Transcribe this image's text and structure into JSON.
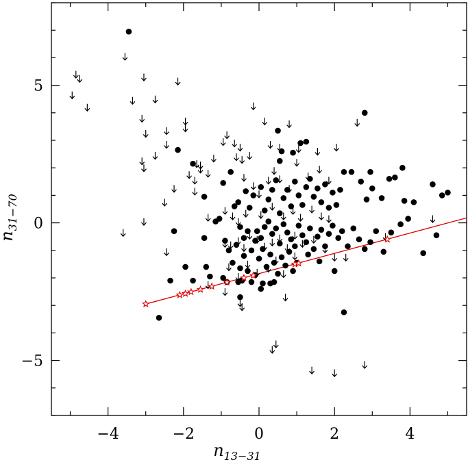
{
  "chart_data": {
    "type": "scatter",
    "title": "",
    "xlabel": {
      "main": "n",
      "sub": "13−31"
    },
    "ylabel": {
      "main": "n",
      "sub": "31−70"
    },
    "xlim": [
      -5.5,
      5.5
    ],
    "ylim": [
      -7,
      8
    ],
    "x_ticks_major": [
      -4,
      -2,
      0,
      2,
      4
    ],
    "x_tick_labels": [
      "−4",
      "−2",
      "0",
      "2",
      "4"
    ],
    "y_ticks_major": [
      -5,
      0,
      5
    ],
    "y_tick_labels": [
      "−5",
      "0",
      "5"
    ],
    "grid": false,
    "colors": {
      "points": "#000000",
      "fit": "#e00000"
    },
    "series": [
      {
        "kind": "detections",
        "marker": "filled-circle",
        "points": [
          [
            -3.45,
            6.95
          ],
          [
            2.8,
            4.0
          ],
          [
            0.5,
            3.35
          ],
          [
            1.25,
            2.95
          ],
          [
            1.1,
            2.9
          ],
          [
            0.6,
            2.6
          ],
          [
            0.9,
            2.55
          ],
          [
            0.55,
            2.25
          ],
          [
            -2.15,
            2.65
          ],
          [
            -1.75,
            2.15
          ],
          [
            -0.75,
            1.85
          ],
          [
            -0.95,
            1.45
          ],
          [
            -1.45,
            0.95
          ],
          [
            -1.05,
            0.15
          ],
          [
            -1.15,
            0.05
          ],
          [
            -0.65,
            0.6
          ],
          [
            -0.55,
            0.75
          ],
          [
            -0.35,
            1.15
          ],
          [
            -0.25,
            0.55
          ],
          [
            -0.15,
            1.0
          ],
          [
            0.05,
            1.3
          ],
          [
            0.15,
            0.45
          ],
          [
            0.25,
            0.85
          ],
          [
            0.35,
            1.2
          ],
          [
            0.45,
            1.55
          ],
          [
            0.55,
            0.35
          ],
          [
            0.65,
            0.9
          ],
          [
            0.75,
            1.2
          ],
          [
            0.85,
            0.6
          ],
          [
            0.95,
            1.5
          ],
          [
            1.05,
            1.0
          ],
          [
            1.15,
            0.65
          ],
          [
            1.25,
            1.3
          ],
          [
            1.35,
            1.6
          ],
          [
            1.45,
            0.95
          ],
          [
            1.55,
            1.25
          ],
          [
            1.65,
            0.75
          ],
          [
            1.75,
            1.4
          ],
          [
            1.85,
            0.55
          ],
          [
            1.95,
            1.1
          ],
          [
            2.05,
            0.65
          ],
          [
            2.15,
            1.2
          ],
          [
            2.25,
            1.85
          ],
          [
            2.45,
            1.85
          ],
          [
            2.7,
            1.5
          ],
          [
            2.85,
            0.85
          ],
          [
            2.95,
            1.85
          ],
          [
            3.0,
            1.25
          ],
          [
            3.25,
            0.9
          ],
          [
            3.45,
            1.6
          ],
          [
            3.6,
            1.65
          ],
          [
            3.8,
            2.0
          ],
          [
            3.85,
            0.8
          ],
          [
            3.95,
            0.15
          ],
          [
            4.1,
            0.75
          ],
          [
            4.6,
            1.4
          ],
          [
            4.85,
            1.0
          ],
          [
            5.0,
            1.1
          ],
          [
            -0.05,
            -0.3
          ],
          [
            0.05,
            -0.55
          ],
          [
            0.15,
            -0.15
          ],
          [
            0.25,
            0.05
          ],
          [
            0.35,
            -0.4
          ],
          [
            0.45,
            -0.2
          ],
          [
            0.55,
            -0.75
          ],
          [
            0.65,
            -0.05
          ],
          [
            0.75,
            -0.35
          ],
          [
            0.85,
            -0.6
          ],
          [
            0.95,
            -0.85
          ],
          [
            1.05,
            -0.1
          ],
          [
            1.15,
            -0.45
          ],
          [
            1.25,
            -0.7
          ],
          [
            1.35,
            -0.2
          ],
          [
            1.45,
            -0.95
          ],
          [
            1.55,
            -0.5
          ],
          [
            1.65,
            -0.25
          ],
          [
            1.75,
            -0.85
          ],
          [
            1.85,
            -0.4
          ],
          [
            1.95,
            -0.1
          ],
          [
            2.1,
            -0.55
          ],
          [
            2.2,
            -0.3
          ],
          [
            2.35,
            -0.85
          ],
          [
            2.5,
            -0.2
          ],
          [
            2.65,
            -0.6
          ],
          [
            2.8,
            -0.95
          ],
          [
            2.95,
            -0.7
          ],
          [
            3.1,
            -0.3
          ],
          [
            3.3,
            -1.05
          ],
          [
            3.5,
            -0.35
          ],
          [
            3.75,
            -0.05
          ],
          [
            -0.5,
            -0.15
          ],
          [
            -0.4,
            -0.55
          ],
          [
            -0.3,
            -0.3
          ],
          [
            -0.2,
            -1.0
          ],
          [
            -0.1,
            -0.65
          ],
          [
            0.0,
            -1.3
          ],
          [
            0.1,
            -0.95
          ],
          [
            0.2,
            -1.6
          ],
          [
            0.3,
            -1.15
          ],
          [
            0.4,
            -1.45
          ],
          [
            0.5,
            -1.85
          ],
          [
            0.6,
            -1.25
          ],
          [
            0.7,
            -1.55
          ],
          [
            0.8,
            -1.05
          ],
          [
            0.9,
            -1.75
          ],
          [
            1.0,
            -1.45
          ],
          [
            -0.9,
            -0.65
          ],
          [
            -0.8,
            -1.0
          ],
          [
            -0.7,
            -1.45
          ],
          [
            -0.6,
            -0.8
          ],
          [
            -0.5,
            -1.65
          ],
          [
            -0.4,
            -1.2
          ],
          [
            -0.3,
            -1.75
          ],
          [
            -0.2,
            -2.15
          ],
          [
            -0.1,
            -1.9
          ],
          [
            0.1,
            -2.2
          ],
          [
            0.3,
            -2.2
          ],
          [
            0.4,
            -2.15
          ],
          [
            -0.45,
            -2.1
          ],
          [
            -0.55,
            -2.15
          ],
          [
            -0.5,
            -2.7
          ],
          [
            -0.85,
            -2.15
          ],
          [
            -0.95,
            -2.0
          ],
          [
            -1.3,
            -1.95
          ],
          [
            -1.4,
            -1.6
          ],
          [
            -1.75,
            -2.1
          ],
          [
            -1.95,
            -1.6
          ],
          [
            -1.45,
            -0.55
          ],
          [
            -2.25,
            -0.3
          ],
          [
            -2.35,
            -2.1
          ],
          [
            -2.65,
            -3.45
          ],
          [
            2.25,
            -3.25
          ],
          [
            4.35,
            -1.1
          ],
          [
            4.7,
            -0.45
          ],
          [
            2.0,
            -1.75
          ],
          [
            1.6,
            -1.4
          ],
          [
            1.3,
            -1.15
          ],
          [
            0.05,
            -2.4
          ]
        ]
      },
      {
        "kind": "upper limits",
        "marker": "down-arrow",
        "points": [
          [
            -4.85,
            5.4
          ],
          [
            -4.75,
            5.25
          ],
          [
            -4.95,
            4.65
          ],
          [
            -4.55,
            4.2
          ],
          [
            -3.55,
            6.05
          ],
          [
            -3.35,
            4.45
          ],
          [
            -3.05,
            5.3
          ],
          [
            -3.1,
            3.8
          ],
          [
            -3.0,
            3.25
          ],
          [
            -2.75,
            4.5
          ],
          [
            -2.15,
            5.15
          ],
          [
            -2.45,
            3.35
          ],
          [
            -1.95,
            3.7
          ],
          [
            -1.95,
            3.45
          ],
          [
            -2.45,
            2.85
          ],
          [
            -2.75,
            2.45
          ],
          [
            -3.1,
            2.25
          ],
          [
            -3.05,
            2.0
          ],
          [
            -1.65,
            2.15
          ],
          [
            -1.55,
            2.1
          ],
          [
            -1.2,
            2.35
          ],
          [
            -0.85,
            3.2
          ],
          [
            -0.95,
            2.95
          ],
          [
            -0.65,
            2.9
          ],
          [
            -0.5,
            2.75
          ],
          [
            -0.6,
            2.4
          ],
          [
            -0.45,
            2.3
          ],
          [
            -0.25,
            2.45
          ],
          [
            -0.15,
            4.25
          ],
          [
            0.15,
            3.7
          ],
          [
            0.8,
            3.6
          ],
          [
            0.3,
            2.85
          ],
          [
            0.55,
            2.75
          ],
          [
            1.05,
            2.7
          ],
          [
            1.55,
            2.6
          ],
          [
            2.05,
            2.75
          ],
          [
            2.6,
            3.65
          ],
          [
            -1.55,
            1.95
          ],
          [
            -1.35,
            1.8
          ],
          [
            -1.85,
            1.75
          ],
          [
            -1.7,
            1.55
          ],
          [
            -1.7,
            1.15
          ],
          [
            -2.25,
            1.25
          ],
          [
            -2.5,
            0.75
          ],
          [
            -3.05,
            0.05
          ],
          [
            -3.6,
            -0.35
          ],
          [
            -2.45,
            -1.05
          ],
          [
            -0.4,
            1.65
          ],
          [
            -0.15,
            1.35
          ],
          [
            0.0,
            1.05
          ],
          [
            0.25,
            1.55
          ],
          [
            0.4,
            1.9
          ],
          [
            0.55,
            1.6
          ],
          [
            0.8,
            1.25
          ],
          [
            1.0,
            2.2
          ],
          [
            1.3,
            1.7
          ],
          [
            1.6,
            1.95
          ],
          [
            1.85,
            1.55
          ],
          [
            -0.9,
            0.45
          ],
          [
            -0.7,
            0.25
          ],
          [
            -0.55,
            0.05
          ],
          [
            -0.35,
            0.35
          ],
          [
            0.05,
            0.3
          ],
          [
            0.35,
            0.6
          ],
          [
            0.65,
            0.25
          ],
          [
            0.9,
            0.45
          ],
          [
            1.1,
            0.2
          ],
          [
            1.4,
            0.5
          ],
          [
            1.65,
            0.25
          ],
          [
            1.85,
            0.15
          ],
          [
            -1.35,
            0.2
          ],
          [
            -0.9,
            -0.75
          ],
          [
            -0.75,
            -0.8
          ],
          [
            -0.55,
            -0.65
          ],
          [
            -0.4,
            -0.9
          ],
          [
            -0.25,
            -0.45
          ],
          [
            -0.05,
            -0.6
          ],
          [
            0.15,
            -0.85
          ],
          [
            0.35,
            -0.7
          ],
          [
            0.55,
            -0.55
          ],
          [
            0.75,
            -0.9
          ],
          [
            0.95,
            -0.45
          ],
          [
            1.15,
            -0.75
          ],
          [
            1.45,
            -0.6
          ],
          [
            1.75,
            -0.95
          ],
          [
            2.0,
            -1.25
          ],
          [
            2.3,
            -1.25
          ],
          [
            3.35,
            -0.5
          ],
          [
            4.6,
            0.15
          ],
          [
            -0.8,
            -1.6
          ],
          [
            -0.55,
            -1.95
          ],
          [
            -0.3,
            -1.5
          ],
          [
            -0.05,
            -1.8
          ],
          [
            0.25,
            -1.65
          ],
          [
            0.45,
            -1.35
          ],
          [
            0.65,
            -1.85
          ],
          [
            0.95,
            -1.2
          ],
          [
            -1.35,
            -2.25
          ],
          [
            -0.9,
            -2.5
          ],
          [
            -0.5,
            -2.9
          ],
          [
            -0.45,
            -3.05
          ],
          [
            0.7,
            -2.7
          ],
          [
            0.35,
            -4.6
          ],
          [
            0.45,
            -4.4
          ],
          [
            1.4,
            -5.35
          ],
          [
            2.0,
            -5.45
          ],
          [
            2.8,
            -5.15
          ]
        ]
      },
      {
        "kind": "model",
        "marker": "red-star-line",
        "line": [
          [
            -3.0,
            -2.95
          ],
          [
            5.5,
            0.18
          ]
        ],
        "stars": [
          [
            -3.0,
            -2.95
          ],
          [
            -2.1,
            -2.62
          ],
          [
            -1.95,
            -2.57
          ],
          [
            -1.8,
            -2.51
          ],
          [
            -1.55,
            -2.42
          ],
          [
            -1.25,
            -2.31
          ],
          [
            -0.85,
            -2.16
          ],
          [
            -0.4,
            -2.0
          ],
          [
            -0.15,
            -1.91
          ],
          [
            0.95,
            -1.5
          ],
          [
            1.05,
            -1.47
          ],
          [
            3.4,
            -0.6
          ]
        ]
      }
    ]
  }
}
